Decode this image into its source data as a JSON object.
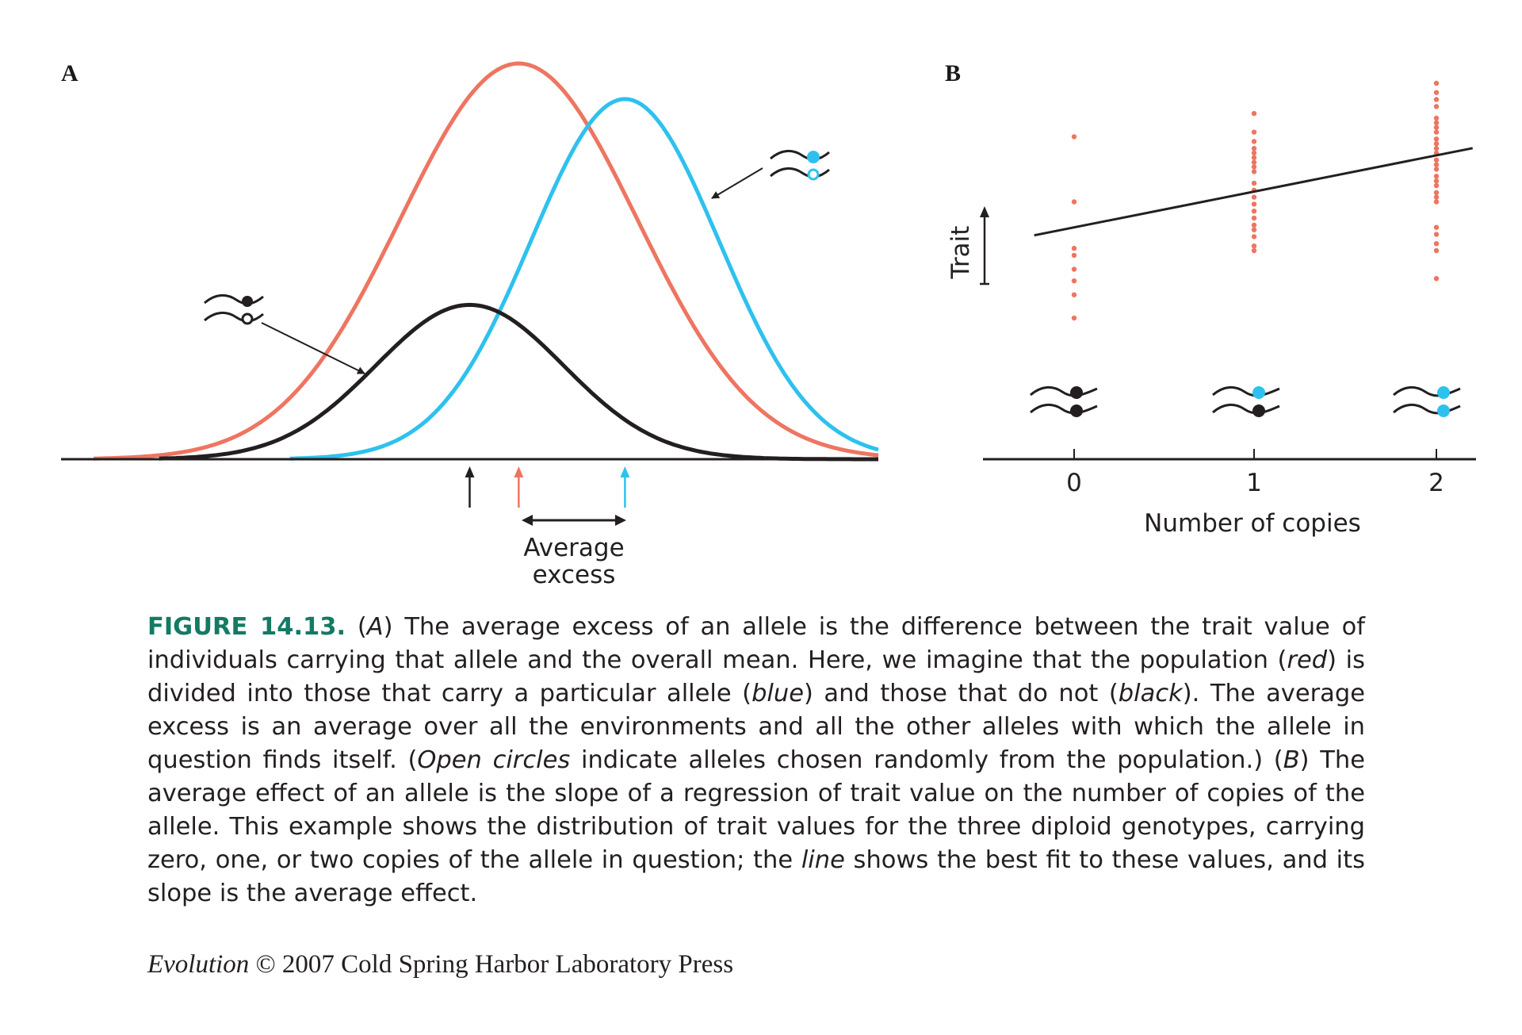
{
  "colors": {
    "population": "#ee7561",
    "carriers": "#2ec1ee",
    "noncarriers": "#231f20",
    "dots": "#ee7561",
    "figure_label": "#137a63"
  },
  "panel_a": {
    "label": "A",
    "annotation_line1": "Average",
    "annotation_line2": "excess"
  },
  "panel_b": {
    "label": "B",
    "ylabel": "Trait",
    "xlabel": "Number of copies",
    "xticks": [
      "0",
      "1",
      "2"
    ]
  },
  "chart_data": [
    {
      "type": "line",
      "panel": "A",
      "xlabel": "",
      "ylabel": "",
      "grid": false,
      "x_range": [
        0,
        100
      ],
      "series": [
        {
          "color": "red",
          "shape": "normal",
          "mean": 56,
          "sd": 14.5,
          "height": 1.0
        },
        {
          "color": "blue",
          "shape": "normal",
          "mean": 69,
          "sd": 11.5,
          "height": 0.91
        },
        {
          "color": "black",
          "shape": "normal",
          "mean": 50,
          "sd": 11.5,
          "height": 0.39
        }
      ],
      "arrows": [
        {
          "color": "black",
          "x": 50
        },
        {
          "color": "red",
          "x": 56
        },
        {
          "color": "blue",
          "x": 69
        }
      ]
    },
    {
      "type": "scatter",
      "panel": "B",
      "xlabel": "Number of copies",
      "ylabel": "Trait",
      "categories": [
        "0",
        "1",
        "2"
      ],
      "xlim": [
        -0.5,
        2.25
      ],
      "ylim": [
        0,
        10
      ],
      "points": {
        "0": [
          1.5,
          2.5,
          3.1,
          3.6,
          4.2,
          4.5,
          6.5,
          9.3
        ],
        "1": [
          4.4,
          4.6,
          5.0,
          5.3,
          5.5,
          5.8,
          6.1,
          6.4,
          6.7,
          7.0,
          7.3,
          7.8,
          8.0,
          8.2,
          8.4,
          8.6,
          8.8,
          9.1,
          9.5,
          10.3
        ],
        "2": [
          3.2,
          4.4,
          4.7,
          5.1,
          5.4,
          6.5,
          6.7,
          6.9,
          7.2,
          7.4,
          7.6,
          7.9,
          8.1,
          8.3,
          8.6,
          8.8,
          9.0,
          9.2,
          9.5,
          9.7,
          9.9,
          10.1,
          10.6,
          10.9,
          11.2,
          11.6
        ]
      },
      "regression": {
        "slope": 1.55,
        "intercept": 5.4
      }
    }
  ],
  "caption": {
    "figure_number": "FIGURE 14.13.",
    "text_html": " (<i>A</i>) The average excess of an allele is the difference between the trait value of individuals carrying that allele and the overall mean. Here, we imagine that the population (<i>red</i>) is divided into those that carry a particular allele (<i>blue</i>) and those that do not (<i>black</i>). The average excess is an average over all the environments and all the other alleles with which the allele in question finds itself. (<i>Open circles</i> indicate alleles chosen randomly from the population.) (<i>B</i>) The average effect of an allele is the slope of a regression of trait value on the number of copies of the allele. This example shows the distribution of trait values for the three diploid genotypes, carrying zero, one, or two copies of the allele in question; the <i>line</i> shows the best fit to these values, and its slope is the average effect."
  },
  "credit": {
    "source": "Evolution",
    "rest": " © 2007 Cold Spring Harbor Laboratory Press"
  }
}
